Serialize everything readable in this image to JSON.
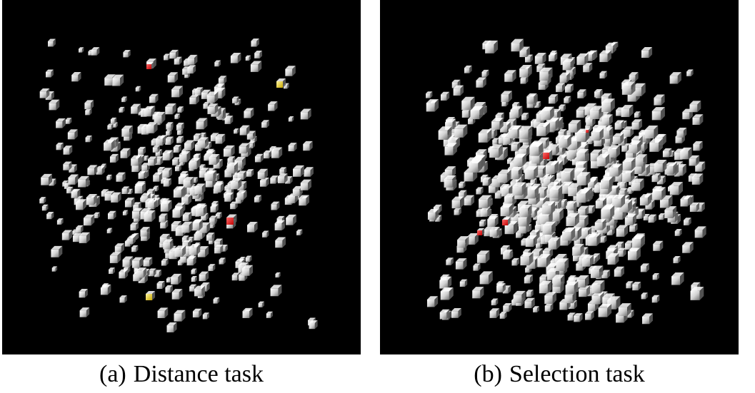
{
  "captions": {
    "a": {
      "tag": "(a)",
      "text": "Distance task"
    },
    "b": {
      "tag": "(b)",
      "text": "Selection task"
    }
  },
  "colors": {
    "background": "#000000",
    "cube_default": "#d9d9d9",
    "cube_highlight_red": "#ff1a1a",
    "cube_highlight_yellow": "#ffe14d",
    "caption_text": "#000000"
  },
  "panels": [
    {
      "id": "a",
      "scene": "distance-task",
      "cube_count": 420,
      "red_cubes": 2,
      "yellow_cubes": 2
    },
    {
      "id": "b",
      "scene": "selection-task",
      "cube_count": 700,
      "red_cubes": 4,
      "yellow_cubes": 0
    }
  ]
}
